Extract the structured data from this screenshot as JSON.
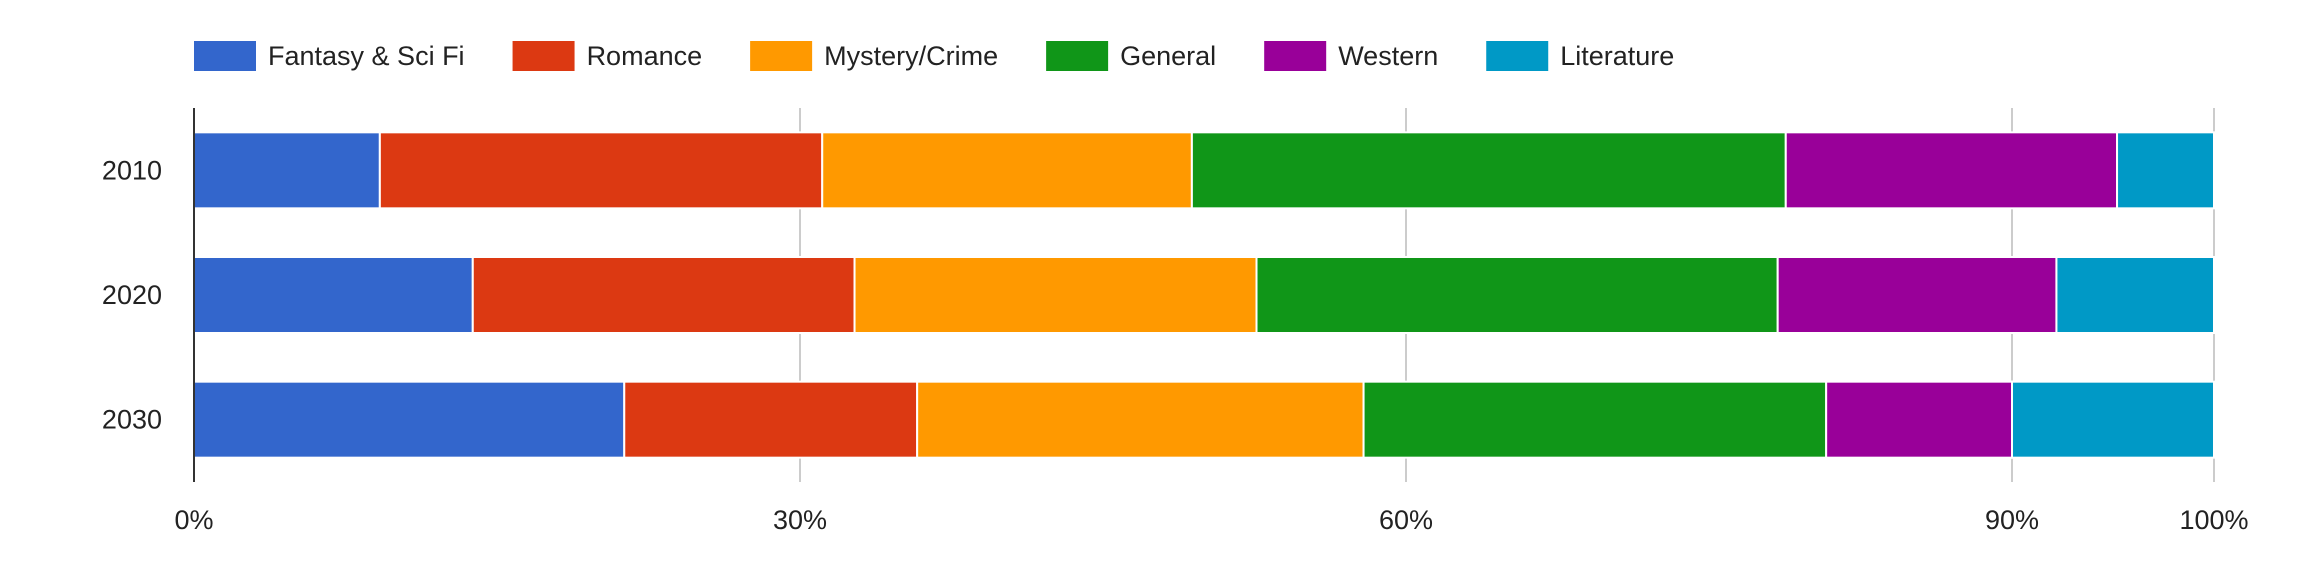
{
  "chart_data": {
    "type": "bar",
    "orientation": "horizontal",
    "stacking": "percent",
    "categories": [
      "2010",
      "2020",
      "2030"
    ],
    "series": [
      {
        "name": "Fantasy & Sci Fi",
        "color": "#3366cc",
        "values": [
          9.2,
          13.8,
          21.3
        ]
      },
      {
        "name": "Romance",
        "color": "#dc3912",
        "values": [
          21.9,
          18.9,
          14.5
        ]
      },
      {
        "name": "Mystery/Crime",
        "color": "#ff9900",
        "values": [
          18.3,
          19.9,
          22.1
        ]
      },
      {
        "name": "General",
        "color": "#109618",
        "values": [
          29.4,
          25.8,
          22.9
        ]
      },
      {
        "name": "Western",
        "color": "#990099",
        "values": [
          16.4,
          13.8,
          9.2
        ]
      },
      {
        "name": "Literature",
        "color": "#0099c6",
        "values": [
          4.8,
          7.8,
          10.0
        ]
      }
    ],
    "xaxis": {
      "ticks": [
        {
          "value": 0,
          "label": "0%"
        },
        {
          "value": 30,
          "label": "30%"
        },
        {
          "value": 60,
          "label": "60%"
        },
        {
          "value": 90,
          "label": "90%"
        },
        {
          "value": 100,
          "label": "100%"
        }
      ]
    },
    "xlim": [
      0,
      100
    ],
    "grid": true,
    "legend_position": "top"
  }
}
